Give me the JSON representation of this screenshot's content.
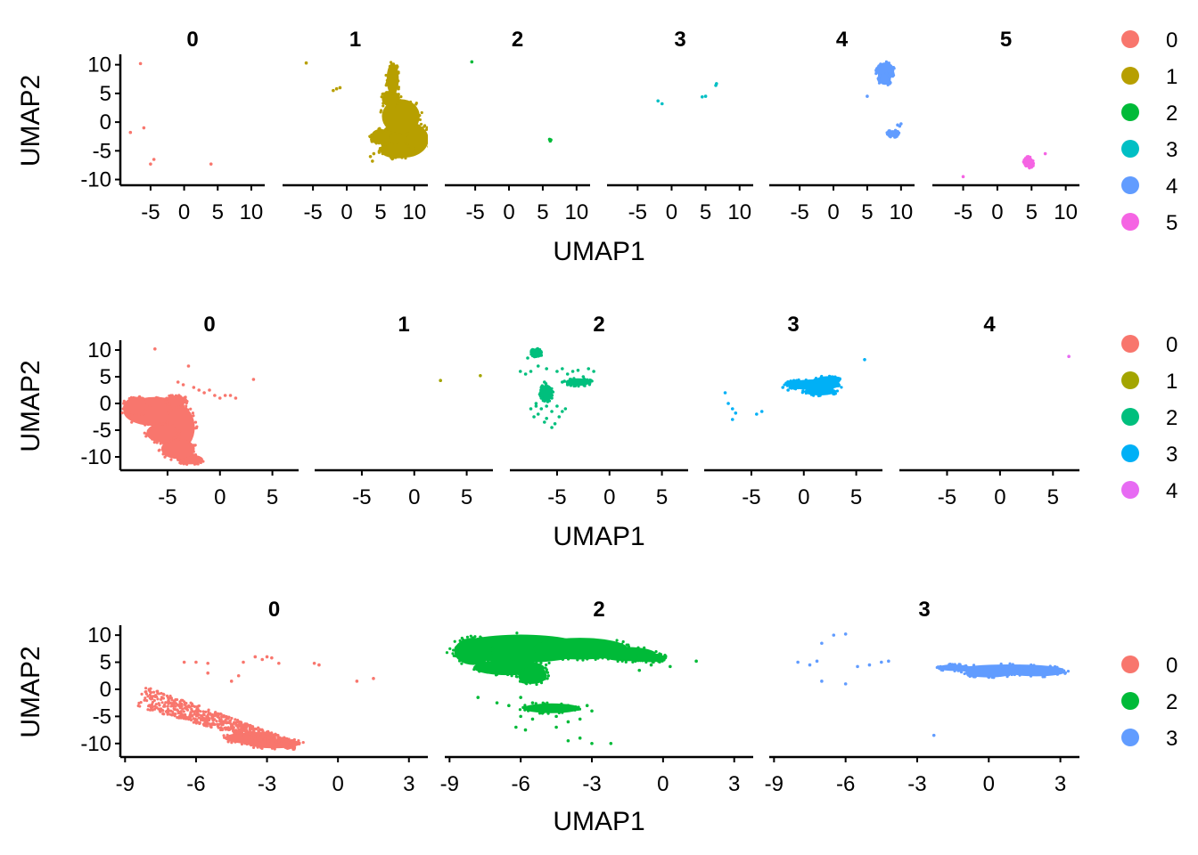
{
  "chart_data": [
    {
      "type": "scatter",
      "xlabel": "UMAP1",
      "ylabel": "UMAP2",
      "xlim": [
        -9.5,
        12
      ],
      "ylim": [
        -11,
        11.5
      ],
      "xticks": [
        -5,
        0,
        5,
        10
      ],
      "xtick_labels": [
        "-5",
        "0",
        "5",
        "10"
      ],
      "yticks": [
        10,
        5,
        0,
        -5,
        -10
      ],
      "ytick_labels": [
        "10",
        "5",
        "0",
        "-5",
        "-10"
      ],
      "legend": {
        "position": "right",
        "entries": [
          "0",
          "1",
          "2",
          "3",
          "4",
          "5"
        ]
      },
      "facets": [
        {
          "title": "0",
          "color": "#F8766D",
          "points": [
            [
              -6.5,
              10.2
            ],
            [
              -8.0,
              -1.8
            ],
            [
              -6.0,
              -1.0
            ],
            [
              -4.5,
              -6.5
            ],
            [
              -5.0,
              -7.3
            ],
            [
              4.0,
              -7.3
            ]
          ],
          "blobs": []
        },
        {
          "title": "1",
          "color": "#B79F00",
          "points": [
            [
              -6.0,
              10.3
            ],
            [
              -2.0,
              5.5
            ],
            [
              -1.5,
              5.8
            ],
            [
              -1.0,
              6.0
            ],
            [
              3.5,
              -6.0
            ],
            [
              3.8,
              -6.8
            ],
            [
              4.0,
              -5.5
            ]
          ],
          "blobs": [
            {
              "cx": 8.5,
              "cy": -3.0,
              "rx": 3.6,
              "ry": 3.2
            },
            {
              "cx": 8.0,
              "cy": 1.0,
              "rx": 2.8,
              "ry": 3.0
            },
            {
              "cx": 6.5,
              "cy": 4.0,
              "rx": 1.3,
              "ry": 1.3
            },
            {
              "cx": 6.8,
              "cy": 7.5,
              "rx": 0.9,
              "ry": 2.8
            },
            {
              "cx": 7.5,
              "cy": -5.0,
              "rx": 2.5,
              "ry": 1.3
            },
            {
              "cx": 5.0,
              "cy": -2.5,
              "rx": 1.4,
              "ry": 1.3
            }
          ]
        },
        {
          "title": "2",
          "color": "#00BA38",
          "points": [
            [
              -5.5,
              10.5
            ],
            [
              6.0,
              -3.0
            ],
            [
              6.1,
              -3.3
            ],
            [
              6.2,
              -3.1
            ]
          ],
          "blobs": []
        },
        {
          "title": "3",
          "color": "#00BFC4",
          "points": [
            [
              -2.0,
              3.7
            ],
            [
              -1.4,
              3.2
            ],
            [
              4.5,
              4.4
            ],
            [
              5.0,
              4.5
            ],
            [
              6.5,
              6.4
            ],
            [
              6.6,
              6.7
            ]
          ],
          "blobs": []
        },
        {
          "title": "4",
          "color": "#619CFF",
          "points": [
            [
              5.0,
              4.5
            ],
            [
              9.5,
              -0.5
            ],
            [
              9.8,
              -0.7
            ],
            [
              10.0,
              -0.3
            ]
          ],
          "blobs": [
            {
              "cx": 7.7,
              "cy": 9.0,
              "rx": 1.3,
              "ry": 1.4
            },
            {
              "cx": 7.6,
              "cy": 7.5,
              "rx": 0.9,
              "ry": 1.0
            },
            {
              "cx": 8.8,
              "cy": -2.0,
              "rx": 0.8,
              "ry": 0.6
            }
          ]
        },
        {
          "title": "5",
          "color": "#F564E3",
          "points": [
            [
              -5.0,
              -9.5
            ],
            [
              7.0,
              -5.5
            ],
            [
              4.5,
              -6.0
            ]
          ],
          "blobs": [
            {
              "cx": 4.6,
              "cy": -7.0,
              "rx": 0.7,
              "ry": 0.9
            }
          ]
        }
      ]
    },
    {
      "type": "scatter",
      "xlabel": "UMAP1",
      "ylabel": "UMAP2",
      "xlim": [
        -9.5,
        7.5
      ],
      "ylim": [
        -12.5,
        11.5
      ],
      "xticks": [
        -5,
        0,
        5
      ],
      "xtick_labels": [
        "-5",
        "0",
        "5"
      ],
      "yticks": [
        10,
        5,
        0,
        -5,
        -10
      ],
      "yticks_labels_note": "",
      "ytick_labels": [
        "10",
        "5",
        "0",
        "-5",
        "-10"
      ],
      "legend": {
        "position": "right",
        "entries": [
          "0",
          "1",
          "2",
          "3",
          "4"
        ]
      },
      "facets": [
        {
          "title": "0",
          "color": "#F8766D",
          "points": [
            [
              -6.2,
              10.2
            ],
            [
              -3.5,
              3.5
            ],
            [
              -3.0,
              7.0
            ],
            [
              -2.5,
              3.0
            ],
            [
              -2.0,
              2.5
            ],
            [
              -1.5,
              2.0
            ],
            [
              -1.0,
              2.5
            ],
            [
              -0.5,
              1.5
            ],
            [
              0.0,
              1.0
            ],
            [
              0.5,
              1.5
            ],
            [
              1.0,
              1.5
            ],
            [
              1.5,
              1.0
            ],
            [
              3.2,
              4.5
            ],
            [
              -4.0,
              4.0
            ]
          ],
          "blobs": [
            {
              "cx": -6.2,
              "cy": -1.5,
              "rx": 3.0,
              "ry": 2.7
            },
            {
              "cx": -3.8,
              "cy": -4.5,
              "rx": 1.4,
              "ry": 4.0
            },
            {
              "cx": -2.8,
              "cy": -10.5,
              "rx": 1.2,
              "ry": 0.9
            },
            {
              "cx": -4.0,
              "cy": -8.5,
              "rx": 1.6,
              "ry": 1.9
            },
            {
              "cx": -8.0,
              "cy": -0.5,
              "rx": 1.2,
              "ry": 1.6
            },
            {
              "cx": -5.5,
              "cy": -5.5,
              "rx": 1.5,
              "ry": 1.8
            },
            {
              "cx": -4.2,
              "cy": 0.5,
              "rx": 1.0,
              "ry": 1.0
            }
          ]
        },
        {
          "title": "1",
          "color": "#A3A500",
          "points": [
            [
              2.5,
              4.3
            ],
            [
              6.3,
              5.2
            ]
          ],
          "blobs": []
        },
        {
          "title": "2",
          "color": "#00BF7D",
          "points": [
            [
              -7.2,
              10.0
            ],
            [
              -7.8,
              8.5
            ],
            [
              -6.5,
              9.0
            ],
            [
              -6.8,
              7.0
            ],
            [
              -7.5,
              6.0
            ],
            [
              -8.5,
              6.0
            ],
            [
              -8.0,
              5.5
            ],
            [
              -6.0,
              6.5
            ],
            [
              -6.2,
              4.0
            ],
            [
              -6.5,
              3.0
            ],
            [
              -6.0,
              2.5
            ],
            [
              -5.8,
              1.5
            ],
            [
              -6.5,
              1.0
            ],
            [
              -5.5,
              1.0
            ],
            [
              -5.0,
              6.0
            ],
            [
              -4.5,
              6.5
            ],
            [
              -4.0,
              5.5
            ],
            [
              -3.5,
              6.0
            ],
            [
              -3.0,
              6.2
            ],
            [
              -2.0,
              6.5
            ],
            [
              -1.5,
              6.0
            ],
            [
              -2.5,
              5.0
            ],
            [
              -4.5,
              4.0
            ],
            [
              -4.0,
              3.5
            ],
            [
              -3.0,
              3.5
            ],
            [
              -2.0,
              4.0
            ],
            [
              -7.0,
              -0.5
            ],
            [
              -6.5,
              -1.0
            ],
            [
              -6.8,
              -2.0
            ],
            [
              -7.2,
              -2.5
            ],
            [
              -6.0,
              -0.5
            ],
            [
              -5.5,
              -1.5
            ],
            [
              -5.0,
              -0.5
            ],
            [
              -4.5,
              -1.5
            ],
            [
              -4.8,
              -2.5
            ],
            [
              -6.2,
              -3.5
            ],
            [
              -5.5,
              -4.5
            ],
            [
              -5.2,
              -3.8
            ],
            [
              -4.2,
              -1.0
            ],
            [
              -7.5,
              -1.0
            ],
            [
              -6.0,
              -2.8
            ],
            [
              -7.0,
              0.0
            ]
          ],
          "blobs": [
            {
              "cx": -6.0,
              "cy": 2.0,
              "rx": 0.6,
              "ry": 1.5
            },
            {
              "cx": -3.0,
              "cy": 4.0,
              "rx": 1.2,
              "ry": 0.7
            },
            {
              "cx": -7.0,
              "cy": 9.5,
              "rx": 0.5,
              "ry": 0.7
            }
          ]
        },
        {
          "title": "3",
          "color": "#00B0F6",
          "points": [
            [
              -7.5,
              2.0
            ],
            [
              -7.2,
              0.0
            ],
            [
              -6.8,
              -1.0
            ],
            [
              -6.5,
              -1.8
            ],
            [
              -6.8,
              -3.0
            ],
            [
              -4.0,
              -1.5
            ],
            [
              -4.5,
              -2.0
            ],
            [
              5.8,
              8.2
            ],
            [
              -1.5,
              2.5
            ],
            [
              -2.0,
              3.0
            ]
          ],
          "blobs": [
            {
              "cx": 1.0,
              "cy": 3.5,
              "rx": 2.5,
              "ry": 1.0
            },
            {
              "cx": 1.5,
              "cy": 2.2,
              "rx": 1.5,
              "ry": 0.7
            },
            {
              "cx": 2.3,
              "cy": 4.3,
              "rx": 1.2,
              "ry": 0.8
            },
            {
              "cx": -0.8,
              "cy": 3.5,
              "rx": 0.8,
              "ry": 0.6
            }
          ]
        },
        {
          "title": "4",
          "color": "#E76BF3",
          "points": [
            [
              6.5,
              8.8
            ]
          ],
          "blobs": []
        }
      ]
    },
    {
      "type": "scatter",
      "xlabel": "UMAP1",
      "ylabel": "UMAP2",
      "xlim": [
        -9.2,
        3.8
      ],
      "ylim": [
        -12.5,
        11.5
      ],
      "xticks": [
        -9,
        -6,
        -3,
        0,
        3
      ],
      "xtick_labels": [
        "-9",
        "-6",
        "-3",
        "0",
        "3"
      ],
      "yticks": [
        10,
        5,
        0,
        -5,
        -10
      ],
      "ytick_labels": [
        "10",
        "5",
        "0",
        "-5",
        "-10"
      ],
      "legend": {
        "position": "right",
        "entries": [
          "0",
          "2",
          "3"
        ]
      },
      "facets": [
        {
          "title": "0",
          "color": "#F8766D",
          "points": [
            [
              -6.5,
              5.0
            ],
            [
              -6.0,
              5.0
            ],
            [
              -5.5,
              4.8
            ],
            [
              -4.0,
              5.0
            ],
            [
              -4.2,
              2.5
            ],
            [
              -3.5,
              6.0
            ],
            [
              -3.2,
              5.5
            ],
            [
              -3.0,
              6.0
            ],
            [
              -2.8,
              5.8
            ],
            [
              -2.5,
              4.8
            ],
            [
              -1.0,
              4.8
            ],
            [
              -0.8,
              4.5
            ],
            [
              0.8,
              1.5
            ],
            [
              1.5,
              2.0
            ],
            [
              -5.5,
              3.0
            ],
            [
              -4.5,
              1.5
            ]
          ],
          "band": {
            "x0": -8.5,
            "y0": -1.0,
            "x1": -1.8,
            "y1": -10.5,
            "halfwidth": 2.2,
            "n": 700
          },
          "blobs": [
            {
              "cx": -2.7,
              "cy": -10.0,
              "rx": 1.1,
              "ry": 0.9
            },
            {
              "cx": -3.8,
              "cy": -9.0,
              "rx": 1.0,
              "ry": 1.0
            }
          ]
        },
        {
          "title": "2",
          "color": "#00BA38",
          "points": [
            [
              -6.0,
              -1.5
            ],
            [
              -5.5,
              -2.5
            ],
            [
              -6.5,
              -3.0
            ],
            [
              -5.0,
              -4.0
            ],
            [
              -5.5,
              -5.5
            ],
            [
              -6.0,
              -5.0
            ],
            [
              -4.5,
              -5.0
            ],
            [
              -4.0,
              -6.0
            ],
            [
              -3.5,
              -5.5
            ],
            [
              -3.2,
              -3.0
            ],
            [
              -3.0,
              -4.0
            ],
            [
              -4.0,
              -3.0
            ],
            [
              -4.5,
              -7.0
            ],
            [
              -4.0,
              -9.5
            ],
            [
              -3.5,
              -9.0
            ],
            [
              -3.0,
              -10.0
            ],
            [
              -2.2,
              -10.0
            ],
            [
              -7.8,
              -1.5
            ],
            [
              -7.0,
              -2.5
            ],
            [
              -6.2,
              -7.0
            ],
            [
              -5.8,
              -7.5
            ],
            [
              -1.0,
              3.5
            ],
            [
              1.4,
              5.2
            ],
            [
              -0.5,
              4.5
            ],
            [
              0.3,
              4.2
            ]
          ],
          "blobs": [
            {
              "cx": -6.0,
              "cy": 7.5,
              "rx": 2.8,
              "ry": 2.6
            },
            {
              "cx": -8.0,
              "cy": 7.0,
              "rx": 0.8,
              "ry": 2.5
            },
            {
              "cx": -3.5,
              "cy": 7.5,
              "rx": 2.0,
              "ry": 2.0
            },
            {
              "cx": -1.5,
              "cy": 6.5,
              "rx": 1.2,
              "ry": 1.3
            },
            {
              "cx": -0.5,
              "cy": 5.8,
              "rx": 0.6,
              "ry": 0.8
            },
            {
              "cx": -6.5,
              "cy": 4.0,
              "rx": 1.5,
              "ry": 1.4
            },
            {
              "cx": -5.5,
              "cy": 2.5,
              "rx": 0.6,
              "ry": 1.5
            },
            {
              "cx": -4.7,
              "cy": -3.5,
              "rx": 1.2,
              "ry": 0.9
            }
          ]
        },
        {
          "title": "3",
          "color": "#619CFF",
          "points": [
            [
              -7.0,
              8.5
            ],
            [
              -6.5,
              10.0
            ],
            [
              -6.0,
              10.2
            ],
            [
              -8.0,
              5.0
            ],
            [
              -7.5,
              4.5
            ],
            [
              -7.2,
              5.2
            ],
            [
              -7.0,
              1.5
            ],
            [
              -6.0,
              1.0
            ],
            [
              -5.5,
              4.2
            ],
            [
              -5.0,
              4.5
            ],
            [
              -4.5,
              5.0
            ],
            [
              -4.2,
              5.2
            ],
            [
              -2.3,
              -8.5
            ]
          ],
          "blobs": [
            {
              "cx": 0.9,
              "cy": 3.7,
              "rx": 2.2,
              "ry": 0.9
            },
            {
              "cx": 0.0,
              "cy": 3.0,
              "rx": 1.0,
              "ry": 0.8
            },
            {
              "cx": 2.0,
              "cy": 3.2,
              "rx": 1.2,
              "ry": 0.8
            },
            {
              "cx": -1.5,
              "cy": 4.0,
              "rx": 0.6,
              "ry": 0.6
            }
          ]
        }
      ]
    }
  ]
}
